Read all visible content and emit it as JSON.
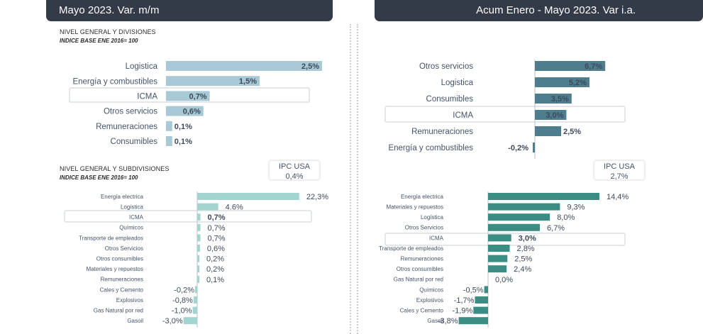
{
  "headers": {
    "left": "Mayo 2023. Var. m/m",
    "right": "Acum Enero - Mayo 2023. Var i.a."
  },
  "sections": {
    "divisions_title": "NIVEL GENERAL Y DIVISIONES",
    "divisions_subtitle": "INDICE BASE ENE 2016= 100",
    "subdivisions_title": "NIVEL GENERAL Y SUBDIVISIONES",
    "subdivisions_subtitle": "INDICE BASE ENE 2016= 100"
  },
  "ipc_usa": {
    "left_label": "IPC USA",
    "left_value": "0,4%",
    "right_label": "IPC USA",
    "right_value": "2,7%"
  },
  "colors": {
    "light_bar": "#a9c9d6",
    "dark_bar": "#4e7d8e",
    "teal_light": "#a3d4cf",
    "teal_dark": "#3b8c82",
    "header_bg": "#323b47"
  },
  "chart_data": [
    {
      "id": "mm-divisions",
      "type": "bar",
      "orientation": "horizontal",
      "title": "Mayo 2023. Var. m/m — Nivel general y divisiones",
      "categories": [
        "Logistica",
        "Energía y combustibles",
        "ICMA",
        "Otros servicios",
        "Remuneraciones",
        "Consumibles"
      ],
      "values": [
        2.5,
        1.5,
        0.7,
        0.6,
        0.1,
        0.1
      ],
      "labels": [
        "2,5%",
        "1,5%",
        "0,7%",
        "0,6%",
        "0,1%",
        "0,1%"
      ],
      "highlight": "ICMA"
    },
    {
      "id": "mm-subdivisions",
      "type": "bar",
      "orientation": "horizontal",
      "title": "Mayo 2023. Var. m/m — Nivel general y subdivisiones",
      "categories": [
        "Energía electrica",
        "Logística",
        "ICMA",
        "Químicos",
        "Transporte de empleados",
        "Otros Servicios",
        "Otros consumibles",
        "Materiales y repuestos",
        "Remuneraciones",
        "Cales y Cemento",
        "Explosivos",
        "Gas Natural por red",
        "Gasoil"
      ],
      "values": [
        22.3,
        4.6,
        0.7,
        0.7,
        0.7,
        0.6,
        0.2,
        0.2,
        0.1,
        -0.2,
        -0.8,
        -1.0,
        -3.0
      ],
      "labels": [
        "22,3%",
        "4.6%",
        "0,7%",
        "0,7%",
        "0,7%",
        "0,6%",
        "0,2%",
        "0,2%",
        "0,1%",
        "-0,2%",
        "-0,8%",
        "-1,0%",
        "-3,0%"
      ],
      "highlight": "ICMA"
    },
    {
      "id": "ia-divisions",
      "type": "bar",
      "orientation": "horizontal",
      "title": "Acum Enero - Mayo 2023. Var i.a. — Nivel general y divisiones",
      "categories": [
        "Otros servicios",
        "Logistica",
        "Consumibles",
        "ICMA",
        "Remuneraciones",
        "Energía y combustibles"
      ],
      "values": [
        6.7,
        5.2,
        3.5,
        3.0,
        2.5,
        -0.2
      ],
      "labels": [
        "6,7%",
        "5,2%",
        "3,5%",
        "3,0%",
        "2,5%",
        "-0,2%"
      ],
      "highlight": "ICMA"
    },
    {
      "id": "ia-subdivisions",
      "type": "bar",
      "orientation": "horizontal",
      "title": "Acum Enero - Mayo 2023. Var i.a. — Nivel general y subdivisiones",
      "categories": [
        "Energía electrica",
        "Materiales y repuestos",
        "Logística",
        "Otros Servicios",
        "ICMA",
        "Transporte de empleados",
        "Remuneraciones",
        "Otros consumibles",
        "Gas Natural por red",
        "Químicos",
        "Explosivos",
        "Cales y Cemento",
        "Gasoil"
      ],
      "values": [
        14.4,
        9.3,
        8.0,
        6.7,
        3.0,
        2.8,
        2.5,
        2.4,
        0.0,
        -0.5,
        -1.7,
        -1.9,
        -3.8
      ],
      "labels": [
        "14,4%",
        "9,3%",
        "8,0%",
        "6,7%",
        "3,0%",
        "2,8%",
        "2,5%",
        "2,4%",
        "0,0%",
        "-0,5%",
        "-1,7%",
        "-1,9%",
        "-3,8%"
      ],
      "highlight": "ICMA"
    }
  ]
}
